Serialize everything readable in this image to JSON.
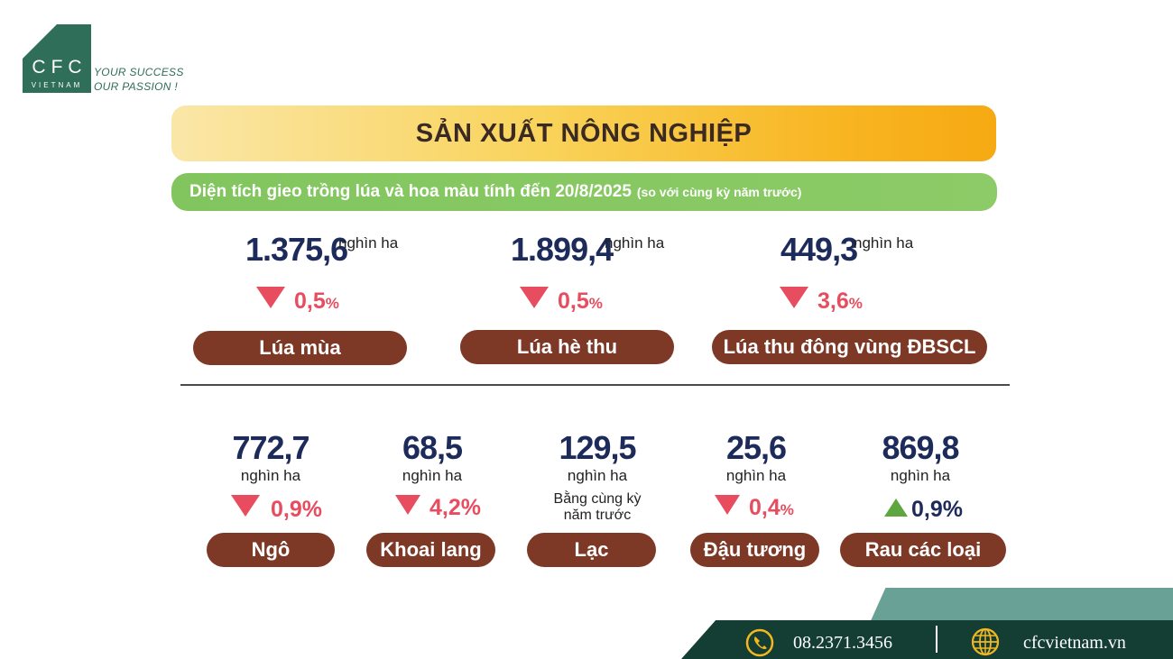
{
  "brand": {
    "logo_word": "CFC",
    "logo_sub": "VIETNAM",
    "tagline_line1": "YOUR SUCCESS",
    "tagline_line2": "OUR PASSION !"
  },
  "header": {
    "title": "SẢN XUẤT NÔNG NGHIỆP",
    "subtitle": "Diện tích gieo trồng lúa và hoa màu tính đến 20/8/2025",
    "subtitle_note": "(so với cùng kỳ năm trước)"
  },
  "rice": [
    {
      "value": "1.375,6",
      "unit": "nghìn ha",
      "direction": "down",
      "change": "0,5",
      "pct": "%",
      "label": "Lúa mùa"
    },
    {
      "value": "1.899,4",
      "unit": "nghìn ha",
      "direction": "down",
      "change": "0,5",
      "pct": "%",
      "label": "Lúa hè thu"
    },
    {
      "value": "449,3",
      "unit": "nghìn ha",
      "direction": "down",
      "change": "3,6",
      "pct": "%",
      "label": "Lúa thu đông vùng ĐBSCL"
    }
  ],
  "crops": [
    {
      "value": "772,7",
      "unit": "nghìn ha",
      "direction": "down",
      "change": "0,9%",
      "label": "Ngô"
    },
    {
      "value": "68,5",
      "unit": "nghìn ha",
      "direction": "down",
      "change": "4,2%",
      "label": "Khoai lang"
    },
    {
      "value": "129,5",
      "unit": "nghìn ha",
      "direction": "same",
      "change_line1": "Bằng cùng kỳ",
      "change_line2": "năm trước",
      "label": "Lạc"
    },
    {
      "value": "25,6",
      "unit": "nghìn ha",
      "direction": "down",
      "change": "0,4",
      "pct": "%",
      "label": "Đậu tương"
    },
    {
      "value": "869,8",
      "unit": "nghìn ha",
      "direction": "up",
      "change": "0,9%",
      "label": "Rau các loại"
    }
  ],
  "footer": {
    "phone": "08.2371.3456",
    "website": "cfcvietnam.vn",
    "phone_icon": "phone-icon",
    "globe_icon": "globe-icon"
  },
  "colors": {
    "brand_green": "#2f6e58",
    "navy": "#1d2b5a",
    "down_red": "#e84d5f",
    "up_green": "#5ea63e",
    "pill_brown": "#7d3826",
    "footer_dark": "#143d33",
    "footer_light": "#6aa197"
  }
}
